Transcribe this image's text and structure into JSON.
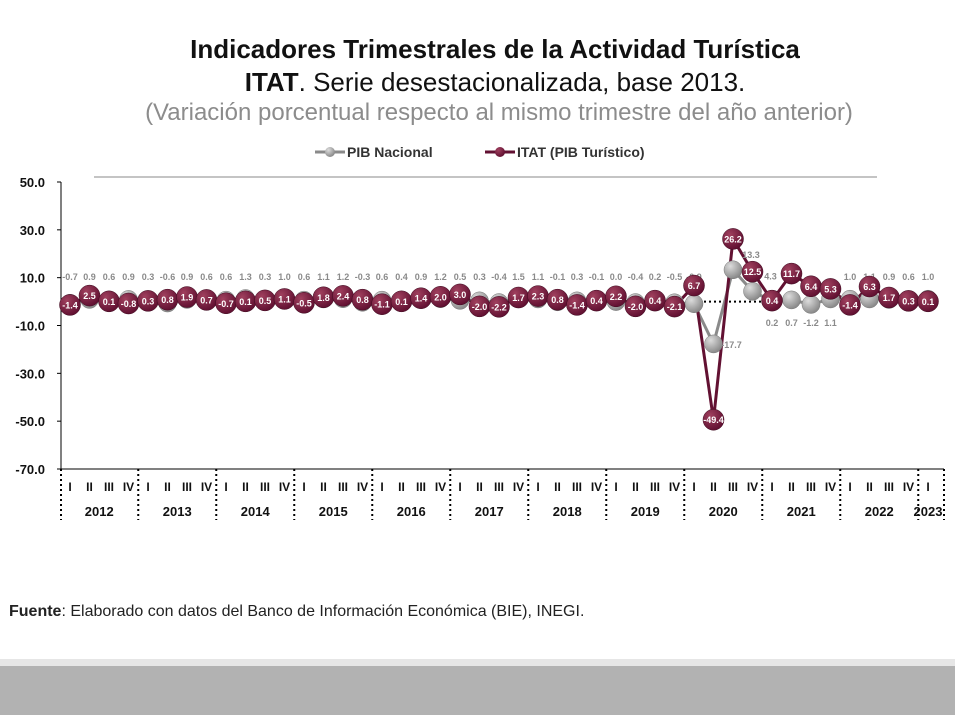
{
  "title": {
    "line1": "Indicadores Trimestrales de la Actividad Turística",
    "line2_bold": "ITAT",
    "line2_rest": ". Serie desestacionalizada, base 2013.",
    "line3": "(Variación porcentual respecto al mismo trimestre del año anterior)"
  },
  "source": {
    "label": "Fuente",
    "text": ": Elaborado con datos del Banco de Información Económica (BIE), INEGI."
  },
  "colors": {
    "pib": "#8a8a8a",
    "itat": "#621132",
    "axis": "#000000",
    "band_light": "#e6e6e6",
    "band_dark": "#b2b2b2"
  },
  "chart_data": {
    "type": "line",
    "ylim": [
      -70,
      50
    ],
    "yticks": [
      "50.0",
      "30.0",
      "10.0",
      "-10.0",
      "-30.0",
      "-50.0",
      "-70.0"
    ],
    "quarter_labels": [
      "I",
      "II",
      "III",
      "IV"
    ],
    "years": [
      "2012",
      "2013",
      "2014",
      "2015",
      "2016",
      "2017",
      "2018",
      "2019",
      "2020",
      "2021",
      "2022",
      "2023"
    ],
    "legend_position": "top-center",
    "series": [
      {
        "name": "PIB Nacional",
        "values": [
          -0.7,
          0.9,
          0.6,
          0.9,
          0.3,
          -0.6,
          0.9,
          0.6,
          0.6,
          1.3,
          0.3,
          1.0,
          0.6,
          1.1,
          1.2,
          -0.3,
          0.6,
          0.4,
          0.9,
          1.2,
          0.5,
          0.3,
          -0.4,
          1.5,
          1.1,
          -0.1,
          0.3,
          -0.1,
          0.0,
          -0.4,
          0.2,
          -0.5,
          -0.9,
          -17.7,
          13.3,
          4.3,
          0.2,
          0.7,
          -1.2,
          1.1,
          1.0,
          1.1,
          0.9,
          0.6,
          1.0
        ]
      },
      {
        "name": "ITAT (PIB Turístico)",
        "values": [
          -1.4,
          2.5,
          0.1,
          -0.8,
          0.3,
          0.8,
          1.9,
          0.7,
          -0.7,
          0.1,
          0.5,
          1.1,
          -0.5,
          1.8,
          2.4,
          0.8,
          -1.1,
          0.1,
          1.4,
          2.0,
          3.0,
          -2.0,
          -2.2,
          1.7,
          2.3,
          0.8,
          -1.4,
          0.4,
          2.2,
          -2.0,
          0.4,
          -2.1,
          6.7,
          -49.4,
          26.2,
          12.5,
          0.4,
          11.7,
          6.4,
          5.3,
          -1.4,
          6.3,
          1.7,
          0.3,
          0.1
        ]
      }
    ]
  }
}
